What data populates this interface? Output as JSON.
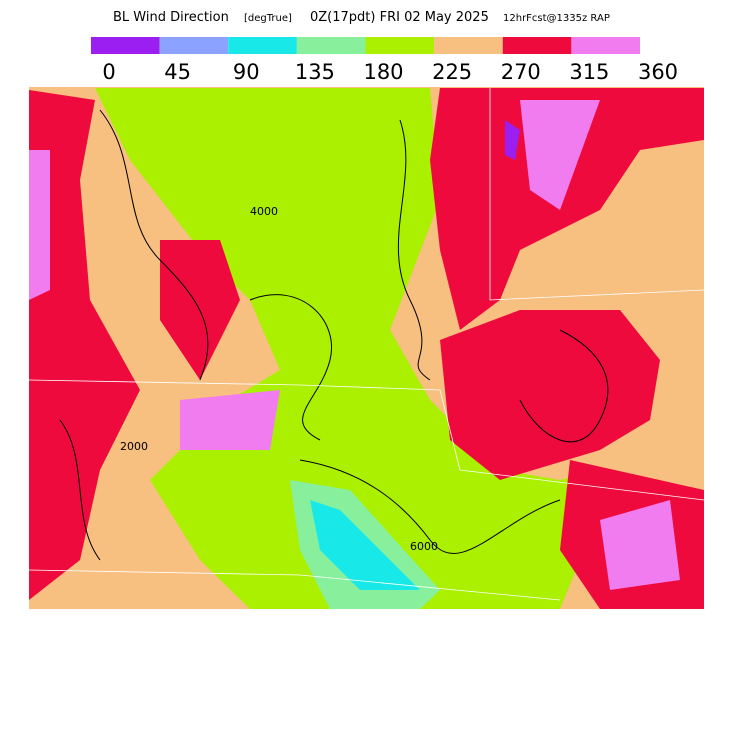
{
  "header": {
    "title": "BL Wind Direction",
    "units": "[degTrue]",
    "valid_time": "0Z(17pdt) FRI 02 May 2025",
    "forecast": "12hrFcst@1335z RAP"
  },
  "colorbar": {
    "colors": [
      "#9a1ff0",
      "#8ca2ff",
      "#19e8e8",
      "#88f09c",
      "#aaf000",
      "#f7bf80",
      "#ee0a3c",
      "#f07cf0"
    ],
    "labels": [
      "0",
      "45",
      "90",
      "135",
      "180",
      "225",
      "270",
      "315",
      "360"
    ]
  },
  "map": {
    "contour_labels": [
      "4000",
      "6000",
      "2000"
    ]
  }
}
